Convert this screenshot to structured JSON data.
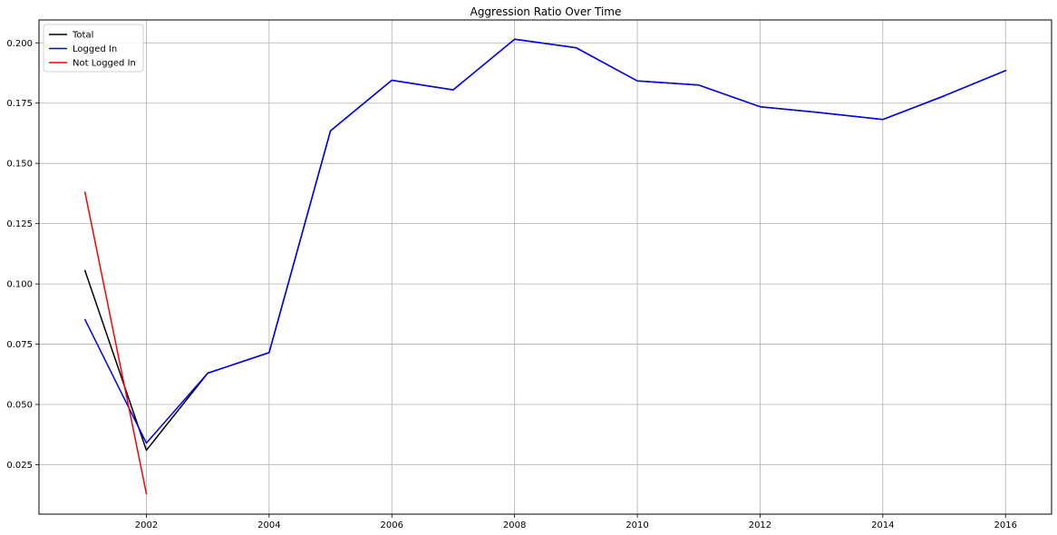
{
  "chart_data": {
    "type": "line",
    "title": "Aggression Ratio Over Time",
    "xlabel": "",
    "ylabel": "",
    "xlim": [
      2000.25,
      2016.75
    ],
    "ylim": [
      0.0045,
      0.2095
    ],
    "x_ticks": [
      2002,
      2004,
      2006,
      2008,
      2010,
      2012,
      2014,
      2016
    ],
    "y_ticks": [
      0.025,
      0.05,
      0.075,
      0.1,
      0.125,
      0.15,
      0.175,
      0.2
    ],
    "y_tick_labels": [
      "0.025",
      "0.050",
      "0.075",
      "0.100",
      "0.125",
      "0.150",
      "0.175",
      "0.200"
    ],
    "grid": true,
    "legend_position": "top-left",
    "series": [
      {
        "name": "Total",
        "color": "#000000",
        "x": [
          2001,
          2002,
          2003,
          2004,
          2005,
          2006,
          2007,
          2008,
          2009,
          2010,
          2011,
          2012,
          2013,
          2014,
          2015,
          2016
        ],
        "y": [
          0.1055,
          0.031,
          0.063,
          0.0715,
          0.1635,
          0.1845,
          0.1805,
          0.2015,
          0.198,
          0.1842,
          0.1825,
          0.1735,
          0.171,
          0.1682,
          0.178,
          0.1885
        ]
      },
      {
        "name": "Logged In",
        "color": "#0000ff",
        "x": [
          2001,
          2002,
          2003,
          2004,
          2005,
          2006,
          2007,
          2008,
          2009,
          2010,
          2011,
          2012,
          2013,
          2014,
          2015,
          2016
        ],
        "y": [
          0.0852,
          0.034,
          0.063,
          0.0715,
          0.1635,
          0.1845,
          0.1805,
          0.2015,
          0.198,
          0.1842,
          0.1825,
          0.1735,
          0.171,
          0.1682,
          0.178,
          0.1885
        ]
      },
      {
        "name": "Not Logged In",
        "color": "#ff0000",
        "x": [
          2001,
          2002
        ],
        "y": [
          0.138,
          0.013
        ]
      }
    ]
  }
}
